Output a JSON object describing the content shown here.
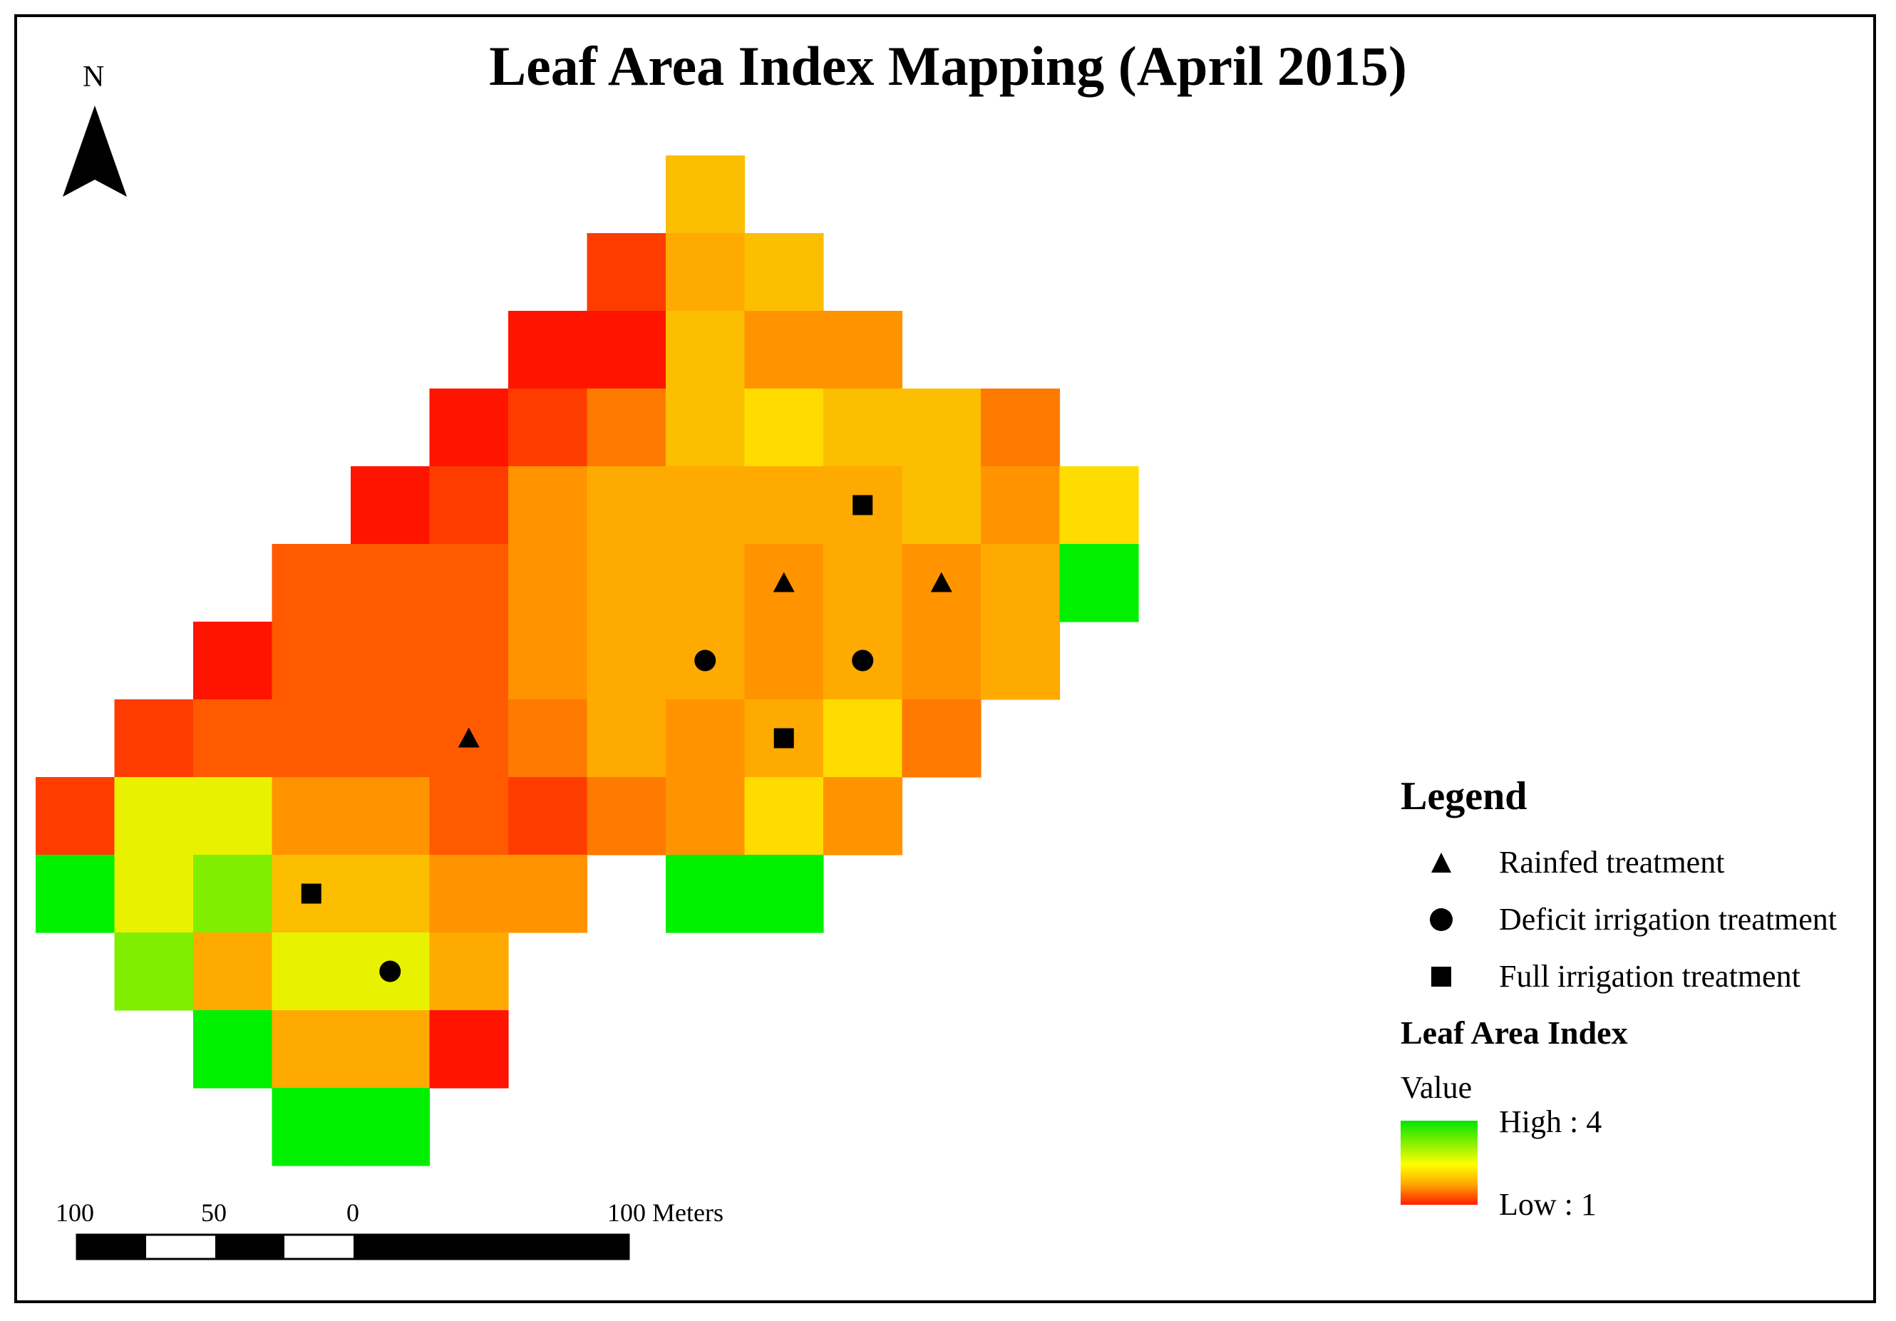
{
  "title": "Leaf Area Index Mapping (April 2015)",
  "north_arrow": {
    "label": "N"
  },
  "legend": {
    "heading": "Legend",
    "items": [
      {
        "symbol": "triangle",
        "label": "Rainfed treatment"
      },
      {
        "symbol": "circle",
        "label": "Deficit irrigation treatment"
      },
      {
        "symbol": "square",
        "label": "Full irrigation treatment"
      }
    ],
    "layer_title": "Leaf Area Index",
    "value_label": "Value",
    "high_label": "High : 4",
    "low_label": "Low : 1"
  },
  "scale_bar": {
    "labels": [
      "100",
      "50",
      "0",
      "100 Meters"
    ]
  },
  "colors": {
    "green": "#00f000",
    "lime": "#80ee00",
    "yellow_green": "#e8f200",
    "yellow": "#ffdc00",
    "yellow_orange": "#fcbe00",
    "light_orange": "#ffaa00",
    "orange": "#ff9400",
    "dark_orange": "#ff7a00",
    "red_orange": "#ff5a00",
    "red_light": "#ff3c00",
    "red": "#ff1400"
  },
  "grid": {
    "cells": [
      {
        "col": 8,
        "row": 0,
        "c": "yellow_orange"
      },
      {
        "col": 7,
        "row": 1,
        "c": "red_light"
      },
      {
        "col": 8,
        "row": 1,
        "c": "light_orange"
      },
      {
        "col": 9,
        "row": 1,
        "c": "yellow_orange"
      },
      {
        "col": 6,
        "row": 2,
        "c": "red"
      },
      {
        "col": 7,
        "row": 2,
        "c": "red"
      },
      {
        "col": 8,
        "row": 2,
        "c": "yellow_orange"
      },
      {
        "col": 9,
        "row": 2,
        "c": "orange"
      },
      {
        "col": 10,
        "row": 2,
        "c": "orange"
      },
      {
        "col": 5,
        "row": 3,
        "c": "red"
      },
      {
        "col": 6,
        "row": 3,
        "c": "red_light"
      },
      {
        "col": 7,
        "row": 3,
        "c": "dark_orange"
      },
      {
        "col": 8,
        "row": 3,
        "c": "yellow_orange"
      },
      {
        "col": 9,
        "row": 3,
        "c": "yellow"
      },
      {
        "col": 10,
        "row": 3,
        "c": "yellow_orange"
      },
      {
        "col": 11,
        "row": 3,
        "c": "yellow_orange"
      },
      {
        "col": 12,
        "row": 3,
        "c": "dark_orange"
      },
      {
        "col": 4,
        "row": 4,
        "c": "red"
      },
      {
        "col": 5,
        "row": 4,
        "c": "red_light"
      },
      {
        "col": 6,
        "row": 4,
        "c": "orange"
      },
      {
        "col": 7,
        "row": 4,
        "c": "light_orange"
      },
      {
        "col": 8,
        "row": 4,
        "c": "light_orange"
      },
      {
        "col": 9,
        "row": 4,
        "c": "light_orange"
      },
      {
        "col": 10,
        "row": 4,
        "c": "light_orange"
      },
      {
        "col": 11,
        "row": 4,
        "c": "yellow_orange"
      },
      {
        "col": 12,
        "row": 4,
        "c": "orange"
      },
      {
        "col": 13,
        "row": 4,
        "c": "yellow"
      },
      {
        "col": 3,
        "row": 5,
        "c": "red_orange"
      },
      {
        "col": 4,
        "row": 5,
        "c": "red_orange"
      },
      {
        "col": 5,
        "row": 5,
        "c": "red_orange"
      },
      {
        "col": 6,
        "row": 5,
        "c": "orange"
      },
      {
        "col": 7,
        "row": 5,
        "c": "light_orange"
      },
      {
        "col": 8,
        "row": 5,
        "c": "light_orange"
      },
      {
        "col": 9,
        "row": 5,
        "c": "orange"
      },
      {
        "col": 10,
        "row": 5,
        "c": "light_orange"
      },
      {
        "col": 11,
        "row": 5,
        "c": "orange"
      },
      {
        "col": 12,
        "row": 5,
        "c": "light_orange"
      },
      {
        "col": 13,
        "row": 5,
        "c": "green"
      },
      {
        "col": 2,
        "row": 6,
        "c": "red"
      },
      {
        "col": 3,
        "row": 6,
        "c": "red_orange"
      },
      {
        "col": 4,
        "row": 6,
        "c": "red_orange"
      },
      {
        "col": 5,
        "row": 6,
        "c": "red_orange"
      },
      {
        "col": 6,
        "row": 6,
        "c": "orange"
      },
      {
        "col": 7,
        "row": 6,
        "c": "light_orange"
      },
      {
        "col": 8,
        "row": 6,
        "c": "light_orange"
      },
      {
        "col": 9,
        "row": 6,
        "c": "orange"
      },
      {
        "col": 10,
        "row": 6,
        "c": "light_orange"
      },
      {
        "col": 11,
        "row": 6,
        "c": "orange"
      },
      {
        "col": 12,
        "row": 6,
        "c": "light_orange"
      },
      {
        "col": 1,
        "row": 7,
        "c": "red_light"
      },
      {
        "col": 2,
        "row": 7,
        "c": "red_orange"
      },
      {
        "col": 3,
        "row": 7,
        "c": "red_orange"
      },
      {
        "col": 4,
        "row": 7,
        "c": "red_orange"
      },
      {
        "col": 5,
        "row": 7,
        "c": "red_orange"
      },
      {
        "col": 6,
        "row": 7,
        "c": "dark_orange"
      },
      {
        "col": 7,
        "row": 7,
        "c": "light_orange"
      },
      {
        "col": 8,
        "row": 7,
        "c": "orange"
      },
      {
        "col": 9,
        "row": 7,
        "c": "light_orange"
      },
      {
        "col": 10,
        "row": 7,
        "c": "yellow"
      },
      {
        "col": 11,
        "row": 7,
        "c": "dark_orange"
      },
      {
        "col": 0,
        "row": 8,
        "c": "red_light"
      },
      {
        "col": 1,
        "row": 8,
        "c": "yellow_green"
      },
      {
        "col": 2,
        "row": 8,
        "c": "yellow_green"
      },
      {
        "col": 3,
        "row": 8,
        "c": "orange"
      },
      {
        "col": 4,
        "row": 8,
        "c": "orange"
      },
      {
        "col": 5,
        "row": 8,
        "c": "red_orange"
      },
      {
        "col": 6,
        "row": 8,
        "c": "red_light"
      },
      {
        "col": 7,
        "row": 8,
        "c": "dark_orange"
      },
      {
        "col": 8,
        "row": 8,
        "c": "orange"
      },
      {
        "col": 9,
        "row": 8,
        "c": "yellow"
      },
      {
        "col": 10,
        "row": 8,
        "c": "orange"
      },
      {
        "col": 0,
        "row": 9,
        "c": "green"
      },
      {
        "col": 1,
        "row": 9,
        "c": "yellow_green"
      },
      {
        "col": 2,
        "row": 9,
        "c": "lime"
      },
      {
        "col": 3,
        "row": 9,
        "c": "yellow_orange"
      },
      {
        "col": 4,
        "row": 9,
        "c": "yellow_orange"
      },
      {
        "col": 5,
        "row": 9,
        "c": "orange"
      },
      {
        "col": 6,
        "row": 9,
        "c": "orange"
      },
      {
        "col": 8,
        "row": 9,
        "c": "green"
      },
      {
        "col": 9,
        "row": 9,
        "c": "green"
      },
      {
        "col": 1,
        "row": 10,
        "c": "lime"
      },
      {
        "col": 2,
        "row": 10,
        "c": "light_orange"
      },
      {
        "col": 3,
        "row": 10,
        "c": "yellow_green"
      },
      {
        "col": 4,
        "row": 10,
        "c": "yellow_green"
      },
      {
        "col": 5,
        "row": 10,
        "c": "light_orange"
      },
      {
        "col": 2,
        "row": 11,
        "c": "green"
      },
      {
        "col": 3,
        "row": 11,
        "c": "light_orange"
      },
      {
        "col": 4,
        "row": 11,
        "c": "light_orange"
      },
      {
        "col": 5,
        "row": 11,
        "c": "red"
      },
      {
        "col": 3,
        "row": 12,
        "c": "green"
      },
      {
        "col": 4,
        "row": 12,
        "c": "green"
      }
    ],
    "markers": [
      {
        "type": "square",
        "col": 10,
        "row": 4
      },
      {
        "type": "triangle",
        "col": 9,
        "row": 5
      },
      {
        "type": "triangle",
        "col": 11,
        "row": 5
      },
      {
        "type": "circle",
        "col": 8,
        "row": 6
      },
      {
        "type": "circle",
        "col": 10,
        "row": 6
      },
      {
        "type": "triangle",
        "col": 5,
        "row": 7
      },
      {
        "type": "square",
        "col": 9,
        "row": 7
      },
      {
        "type": "square",
        "col": 3,
        "row": 9
      },
      {
        "type": "circle",
        "col": 4,
        "row": 10
      }
    ]
  }
}
